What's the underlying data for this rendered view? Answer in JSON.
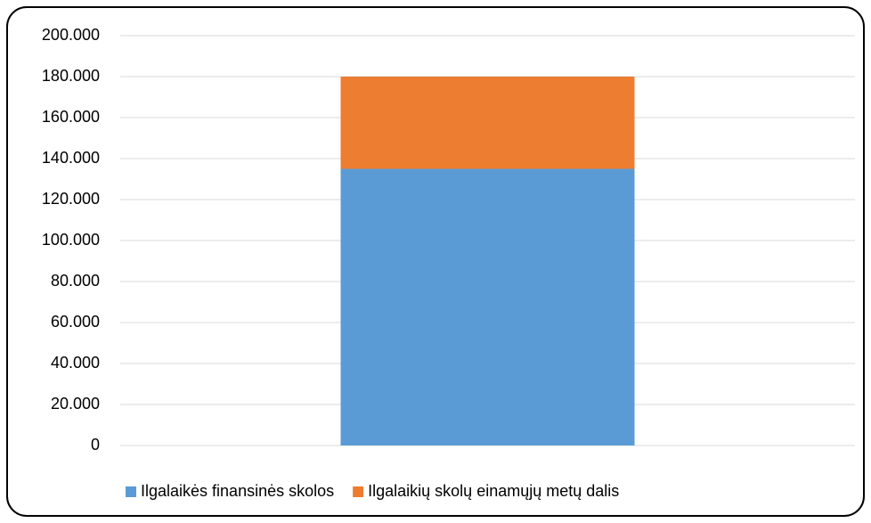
{
  "chart_data": {
    "type": "stacked_bar",
    "categories": [
      null
    ],
    "series": [
      {
        "name": "Ilgalaikės finansinės skolos",
        "color": "#5b9bd5",
        "values": [
          135000
        ]
      },
      {
        "name": "Ilgalaikių skolų einamųjų metų dalis",
        "color": "#ed7d31",
        "values": [
          45000
        ]
      }
    ],
    "ylim": [
      0,
      200000
    ],
    "yticks": [
      0,
      {
        "value": 20000,
        "label": "20.000"
      },
      {
        "value": 40000,
        "label": "40.000"
      },
      {
        "value": 60000,
        "label": "60.000"
      },
      {
        "value": 80000,
        "label": "80.000"
      },
      {
        "value": 100000,
        "label": "100.000"
      },
      {
        "value": 120000,
        "label": "120.000"
      },
      {
        "value": 140000,
        "label": "140.000"
      },
      {
        "value": 160000,
        "label": "160.000"
      },
      {
        "value": 180000,
        "label": "180.000"
      },
      {
        "value": 200000,
        "label": "200.000"
      }
    ],
    "grid": true,
    "legend": "bottom"
  }
}
